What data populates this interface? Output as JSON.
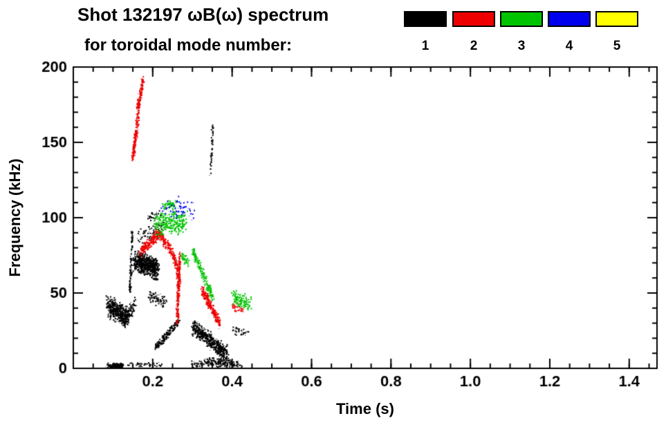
{
  "chart_data": {
    "type": "scatter",
    "title": "Shot 132197 ωB(ω) spectrum",
    "subtitle": "for toroidal mode number:",
    "xlabel": "Time (s)",
    "ylabel": "Frequency (kHz)",
    "xlim": [
      0,
      1.47
    ],
    "ylim": [
      0,
      200
    ],
    "xticks": [
      0.2,
      0.4,
      0.6,
      0.8,
      1.0,
      1.2,
      1.4
    ],
    "xtick_labels": [
      "0.2",
      "0.4",
      "0.6",
      "0.8",
      "1.0",
      "1.2",
      "1.4"
    ],
    "yticks": [
      0,
      50,
      100,
      150,
      200
    ],
    "ytick_labels": [
      "0",
      "50",
      "100",
      "150",
      "200"
    ],
    "x_minor_step": 0.05,
    "y_minor_step": 10,
    "grid": false,
    "legend_position": "top-right",
    "legend": [
      {
        "label": "1",
        "color": "#000000"
      },
      {
        "label": "2",
        "color": "#ee0000"
      },
      {
        "label": "3",
        "color": "#00c400"
      },
      {
        "label": "4",
        "color": "#0000ee"
      },
      {
        "label": "5",
        "color": "#ffff00"
      }
    ],
    "segment_format": [
      "t_start_s",
      "f_start_kHz",
      "t_end_s",
      "f_end_kHz",
      "t_jitter_s",
      "f_jitter_kHz",
      "n_points"
    ],
    "series": [
      {
        "name": "toroidal mode n=1",
        "color": "#000000",
        "segments": [
          [
            0.085,
            42,
            0.135,
            34,
            0.008,
            8,
            420
          ],
          [
            0.13,
            32,
            0.155,
            44,
            0.006,
            6,
            90
          ],
          [
            0.085,
            2,
            0.125,
            2,
            0.006,
            2,
            160
          ],
          [
            0.13,
            3,
            0.22,
            3,
            0.01,
            2,
            45
          ],
          [
            0.3,
            3,
            0.42,
            3,
            0.012,
            3,
            120
          ],
          [
            0.141,
            50,
            0.147,
            92,
            0.003,
            5,
            90
          ],
          [
            0.155,
            72,
            0.21,
            66,
            0.01,
            8,
            700
          ],
          [
            0.16,
            88,
            0.225,
            92,
            0.008,
            7,
            70
          ],
          [
            0.19,
            100,
            0.215,
            103,
            0.006,
            4,
            25
          ],
          [
            0.19,
            48,
            0.23,
            44,
            0.006,
            5,
            80
          ],
          [
            0.205,
            14,
            0.265,
            32,
            0.004,
            3,
            170
          ],
          [
            0.3,
            28,
            0.385,
            10,
            0.006,
            6,
            550
          ],
          [
            0.33,
            6,
            0.4,
            4,
            0.008,
            3,
            100
          ],
          [
            0.344,
            128,
            0.35,
            162,
            0.003,
            5,
            45
          ],
          [
            0.4,
            26,
            0.435,
            24,
            0.006,
            4,
            30
          ]
        ]
      },
      {
        "name": "toroidal mode n=2",
        "color": "#ee0000",
        "segments": [
          [
            0.148,
            140,
            0.162,
            168,
            0.004,
            5,
            160
          ],
          [
            0.159,
            170,
            0.174,
            192,
            0.004,
            4,
            120
          ],
          [
            0.168,
            78,
            0.215,
            90,
            0.005,
            4,
            220
          ],
          [
            0.215,
            90,
            0.255,
            74,
            0.005,
            4,
            160
          ],
          [
            0.252,
            74,
            0.268,
            56,
            0.004,
            4,
            90
          ],
          [
            0.26,
            32,
            0.266,
            76,
            0.004,
            4,
            200
          ],
          [
            0.323,
            52,
            0.368,
            30,
            0.004,
            4,
            220
          ],
          [
            0.398,
            42,
            0.425,
            38,
            0.006,
            3,
            35
          ]
        ]
      },
      {
        "name": "toroidal mode n=3",
        "color": "#00c400",
        "segments": [
          [
            0.205,
            95,
            0.28,
            98,
            0.01,
            9,
            280
          ],
          [
            0.225,
            108,
            0.255,
            110,
            0.006,
            3,
            60
          ],
          [
            0.3,
            78,
            0.35,
            47,
            0.004,
            4,
            180
          ],
          [
            0.272,
            74,
            0.29,
            70,
            0.005,
            4,
            40
          ],
          [
            0.4,
            48,
            0.445,
            42,
            0.008,
            6,
            120
          ]
        ]
      },
      {
        "name": "toroidal mode n=4",
        "color": "#0000ee",
        "segments": [
          [
            0.225,
            108,
            0.3,
            106,
            0.012,
            8,
            60
          ]
        ]
      },
      {
        "name": "toroidal mode n=5",
        "color": "#ffff00",
        "segments": []
      }
    ]
  }
}
